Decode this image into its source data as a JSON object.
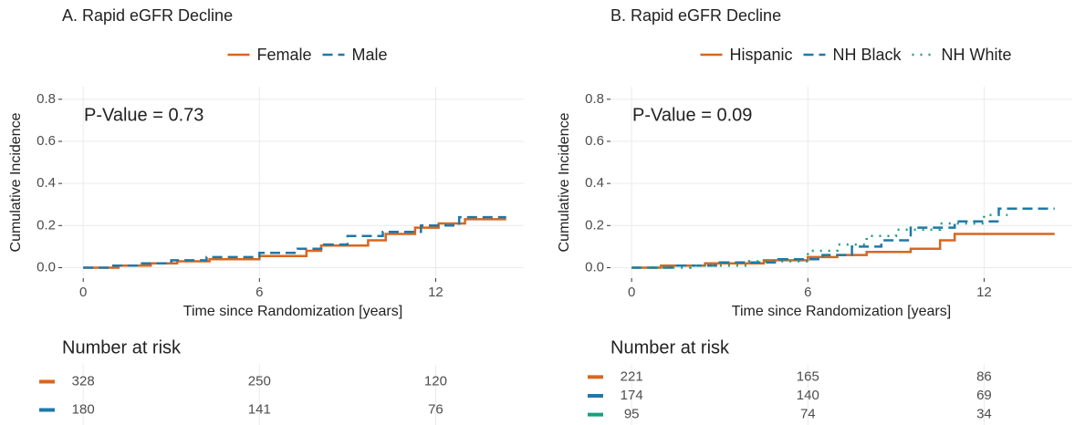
{
  "chart_data": [
    {
      "type": "line",
      "title": "A. Rapid eGFR Decline",
      "annotation": "P-Value = 0.73",
      "xlabel": "Time since Randomization [years]",
      "ylabel": "Cumulative Incidence",
      "xlim": [
        -0.72,
        15.0
      ],
      "ylim": [
        -0.05,
        0.86
      ],
      "xticks": [
        0,
        6,
        12
      ],
      "yticks": [
        {
          "value": 0,
          "label": "0.0"
        },
        {
          "value": 0.2,
          "label": "0.2"
        },
        {
          "value": 0.4,
          "label": "0.4"
        },
        {
          "value": 0.6,
          "label": "0.6"
        },
        {
          "value": 0.8,
          "label": "0.8"
        }
      ],
      "grid": true,
      "legend": "top",
      "series": [
        {
          "name": "Female",
          "color": "#d9661f",
          "dash": "solid",
          "x": [
            0,
            1.2,
            1.2,
            2.3,
            2.3,
            3.2,
            3.2,
            4.3,
            4.3,
            6,
            6,
            7.6,
            7.6,
            8.1,
            8.1,
            9.7,
            9.7,
            10.3,
            10.3,
            11.3,
            11.3,
            12.1,
            12.1,
            13,
            13,
            14.4
          ],
          "values": [
            0,
            0,
            0.01,
            0.01,
            0.02,
            0.02,
            0.03,
            0.03,
            0.04,
            0.04,
            0.055,
            0.055,
            0.08,
            0.08,
            0.105,
            0.105,
            0.13,
            0.13,
            0.16,
            0.16,
            0.19,
            0.19,
            0.21,
            0.21,
            0.23,
            0.23
          ]
        },
        {
          "name": "Male",
          "color": "#1f78a8",
          "dash": "dashed",
          "x": [
            0,
            0.9,
            0.9,
            2,
            2,
            3,
            3,
            4.2,
            4.2,
            6,
            6,
            7.3,
            7.3,
            8.2,
            8.2,
            9,
            9,
            10.2,
            10.2,
            11.5,
            11.5,
            12.8,
            12.8,
            14.4
          ],
          "values": [
            0,
            0,
            0.01,
            0.01,
            0.02,
            0.02,
            0.035,
            0.035,
            0.05,
            0.05,
            0.07,
            0.07,
            0.09,
            0.09,
            0.11,
            0.11,
            0.15,
            0.15,
            0.17,
            0.17,
            0.2,
            0.2,
            0.24,
            0.24
          ]
        }
      ],
      "risk_table": {
        "title": "Number at risk",
        "times": [
          0,
          6,
          12
        ],
        "rows": [
          {
            "color": "#d9661f",
            "values": [
              328,
              250,
              120
            ]
          },
          {
            "color": "#1f78a8",
            "values": [
              180,
              141,
              76
            ]
          }
        ]
      }
    },
    {
      "type": "line",
      "title": "B. Rapid eGFR Decline",
      "annotation": "P-Value = 0.09",
      "xlabel": "Time since Randomization [years]",
      "ylabel": "Cumulative Incidence",
      "xlim": [
        -0.72,
        15.0
      ],
      "ylim": [
        -0.05,
        0.86
      ],
      "xticks": [
        0,
        6,
        12
      ],
      "yticks": [
        {
          "value": 0,
          "label": "0.0"
        },
        {
          "value": 0.2,
          "label": "0.2"
        },
        {
          "value": 0.4,
          "label": "0.4"
        },
        {
          "value": 0.6,
          "label": "0.6"
        },
        {
          "value": 0.8,
          "label": "0.8"
        }
      ],
      "grid": true,
      "legend": "top",
      "series": [
        {
          "name": "Hispanic",
          "color": "#d9661f",
          "dash": "solid",
          "x": [
            0,
            1,
            1,
            2.5,
            2.5,
            4.5,
            4.5,
            6,
            6,
            7,
            7,
            8,
            8,
            9.5,
            9.5,
            10.5,
            10.5,
            11,
            11,
            14.4
          ],
          "values": [
            0,
            0,
            0.01,
            0.01,
            0.02,
            0.02,
            0.035,
            0.035,
            0.05,
            0.05,
            0.06,
            0.06,
            0.075,
            0.075,
            0.09,
            0.09,
            0.13,
            0.13,
            0.16,
            0.16
          ]
        },
        {
          "name": "NH Black",
          "color": "#1f78a8",
          "dash": "dashed",
          "x": [
            0,
            1.5,
            1.5,
            3,
            3,
            5,
            5,
            6.5,
            6.5,
            7.5,
            7.5,
            8.5,
            8.5,
            9.5,
            9.5,
            11,
            11,
            12.5,
            12.5,
            14.4
          ],
          "values": [
            0,
            0,
            0.01,
            0.01,
            0.025,
            0.025,
            0.04,
            0.04,
            0.06,
            0.06,
            0.1,
            0.1,
            0.13,
            0.13,
            0.19,
            0.19,
            0.22,
            0.22,
            0.28,
            0.28
          ]
        },
        {
          "name": "NH White",
          "color": "#1a9e80",
          "dash": "dotted",
          "x": [
            0,
            2,
            2,
            4,
            4,
            6,
            6,
            7,
            7,
            8,
            8,
            9,
            9,
            10.5,
            10.5,
            12,
            12,
            12.8
          ],
          "values": [
            0,
            0,
            0.01,
            0.01,
            0.03,
            0.03,
            0.08,
            0.08,
            0.11,
            0.11,
            0.15,
            0.15,
            0.18,
            0.18,
            0.21,
            0.21,
            0.25,
            0.25
          ]
        }
      ],
      "risk_table": {
        "title": "Number at risk",
        "times": [
          0,
          6,
          12
        ],
        "rows": [
          {
            "color": "#d9661f",
            "values": [
              221,
              165,
              86
            ]
          },
          {
            "color": "#1f78a8",
            "values": [
              174,
              140,
              69
            ]
          },
          {
            "color": "#1a9e80",
            "values": [
              95,
              74,
              34
            ]
          }
        ]
      }
    }
  ]
}
